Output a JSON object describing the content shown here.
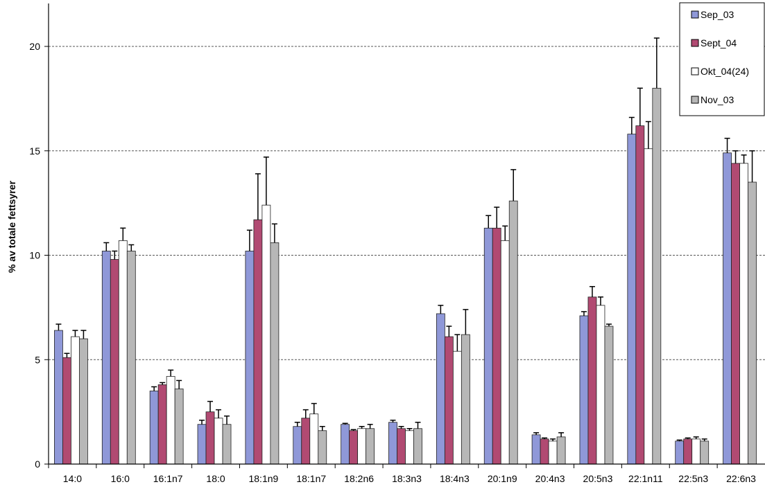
{
  "chart_data": {
    "type": "bar",
    "title": "",
    "xlabel": "",
    "ylabel": "% av totale fettsyrer",
    "ylim": [
      0,
      20
    ],
    "yticks": [
      0,
      5,
      10,
      15,
      20
    ],
    "grid": true,
    "legend_position": "top-right",
    "categories": [
      "14:0",
      "16:0",
      "16:1n7",
      "18:0",
      "18:1n9",
      "18:1n7",
      "18:2n6",
      "18:3n3",
      "18:4n3",
      "20:1n9",
      "20:4n3",
      "20:5n3",
      "22:1n11",
      "22:5n3",
      "22:6n3"
    ],
    "series": [
      {
        "name": "Sep_03",
        "color": "#8f98d8",
        "values": [
          6.4,
          10.2,
          3.5,
          1.9,
          10.2,
          1.8,
          1.9,
          2.0,
          7.2,
          11.3,
          1.4,
          7.1,
          15.8,
          1.1,
          14.9
        ],
        "errors": [
          0.3,
          0.4,
          0.2,
          0.2,
          1.0,
          0.2,
          0.05,
          0.1,
          0.4,
          0.6,
          0.1,
          0.2,
          0.8,
          0.05,
          0.7
        ]
      },
      {
        "name": "Sept_04",
        "color": "#b14a72",
        "values": [
          5.1,
          9.8,
          3.8,
          2.5,
          11.7,
          2.2,
          1.6,
          1.7,
          6.1,
          11.3,
          1.2,
          8.0,
          16.2,
          1.2,
          14.4
        ],
        "errors": [
          0.2,
          0.4,
          0.1,
          0.5,
          2.2,
          0.4,
          0.05,
          0.1,
          0.5,
          1.0,
          0.05,
          0.5,
          1.8,
          0.05,
          0.6
        ]
      },
      {
        "name": "Okt_04(24)",
        "color": "#ffffff",
        "values": [
          6.1,
          10.7,
          4.2,
          2.2,
          12.4,
          2.4,
          1.7,
          1.6,
          5.4,
          10.7,
          1.1,
          7.6,
          15.1,
          1.2,
          14.4
        ],
        "errors": [
          0.3,
          0.6,
          0.3,
          0.4,
          2.3,
          0.5,
          0.1,
          0.1,
          0.8,
          0.7,
          0.1,
          0.4,
          1.3,
          0.1,
          0.4
        ]
      },
      {
        "name": "Nov_03",
        "color": "#b7b7b7",
        "values": [
          6.0,
          10.2,
          3.6,
          1.9,
          10.6,
          1.6,
          1.7,
          1.7,
          6.2,
          12.6,
          1.3,
          6.6,
          18.0,
          1.1,
          13.5
        ],
        "errors": [
          0.4,
          0.3,
          0.4,
          0.4,
          0.9,
          0.2,
          0.2,
          0.3,
          1.2,
          1.5,
          0.2,
          0.1,
          2.4,
          0.1,
          1.5
        ]
      }
    ]
  }
}
